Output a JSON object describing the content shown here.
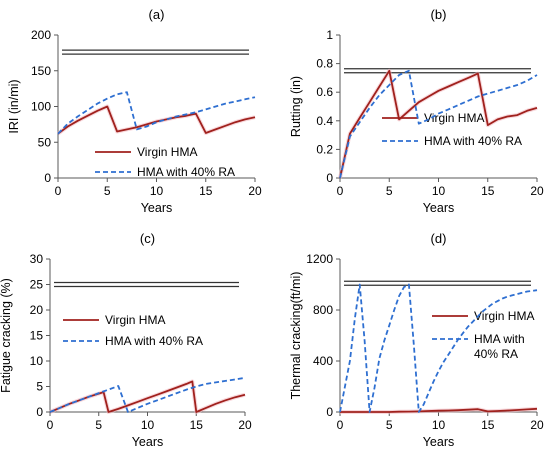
{
  "colors": {
    "virgin": "#a0211d",
    "ra": "#2e6fd1",
    "threshold": "#333333",
    "axis": "#595959",
    "virgin_halo": "#f2b8bf"
  },
  "chart_data": [
    {
      "type": "line",
      "panel_label": "(a)",
      "xlabel": "Years",
      "ylabel": "IRI (in/mi)",
      "xlim": [
        0,
        20
      ],
      "ylim": [
        0,
        200
      ],
      "xticks": [
        0,
        5,
        10,
        15,
        20
      ],
      "yticks": [
        0,
        50,
        100,
        150,
        200
      ],
      "xtick_labels": [
        "0",
        "5",
        "10",
        "15",
        "20"
      ],
      "ytick_labels": [
        "0",
        "50",
        "100",
        "150",
        "200"
      ],
      "threshold": 176,
      "legend": "bottom",
      "series": [
        {
          "name": "Virgin HMA",
          "style": "solid",
          "x": [
            0,
            1,
            2,
            3,
            4,
            5,
            6,
            7,
            8,
            9,
            10,
            11,
            12,
            13,
            14,
            15,
            16,
            17,
            18,
            19,
            20
          ],
          "y": [
            62,
            72,
            80,
            87,
            94,
            100,
            65,
            68,
            71,
            75,
            79,
            82,
            85,
            87,
            90,
            63,
            68,
            73,
            78,
            82,
            85
          ]
        },
        {
          "name": "HMA with 40% RA",
          "style": "dashed",
          "x": [
            0,
            1,
            2,
            3,
            4,
            5,
            6,
            7,
            8,
            9,
            10,
            11,
            12,
            13,
            14,
            15,
            16,
            17,
            18,
            19,
            20
          ],
          "y": [
            62,
            76,
            86,
            95,
            104,
            111,
            117,
            120,
            68,
            72,
            78,
            82,
            86,
            89,
            92,
            96,
            100,
            104,
            107,
            110,
            113
          ]
        }
      ]
    },
    {
      "type": "line",
      "panel_label": "(b)",
      "xlabel": "Years",
      "ylabel": "Rutting (in)",
      "xlim": [
        0,
        20
      ],
      "ylim": [
        0,
        1
      ],
      "xticks": [
        0,
        5,
        10,
        15,
        20
      ],
      "yticks": [
        0,
        0.2,
        0.4,
        0.6,
        0.8,
        1
      ],
      "xtick_labels": [
        "0",
        "5",
        "10",
        "15",
        "20"
      ],
      "ytick_labels": [
        "0",
        "0.2",
        "0.4",
        "0.6",
        "0.8",
        "1"
      ],
      "threshold": 0.75,
      "legend": "bottom-right",
      "series": [
        {
          "name": "Virgin HMA",
          "style": "solid",
          "x": [
            0,
            1,
            2,
            3,
            4,
            5,
            6,
            7,
            8,
            9,
            10,
            11,
            12,
            13,
            14,
            15,
            16,
            17,
            18,
            19,
            20
          ],
          "y": [
            0,
            0.31,
            0.42,
            0.53,
            0.64,
            0.75,
            0.41,
            0.47,
            0.53,
            0.57,
            0.61,
            0.64,
            0.67,
            0.7,
            0.73,
            0.37,
            0.41,
            0.43,
            0.44,
            0.47,
            0.49
          ]
        },
        {
          "name": "HMA with 40% RA",
          "style": "dashed",
          "x": [
            0,
            1,
            2,
            3,
            4,
            5,
            6,
            7,
            8,
            9,
            10,
            11,
            12,
            13,
            14,
            15,
            16,
            17,
            18,
            19,
            20
          ],
          "y": [
            0,
            0.29,
            0.39,
            0.49,
            0.58,
            0.65,
            0.72,
            0.75,
            0.38,
            0.41,
            0.45,
            0.48,
            0.51,
            0.54,
            0.57,
            0.59,
            0.61,
            0.63,
            0.65,
            0.68,
            0.72
          ]
        }
      ]
    },
    {
      "type": "line",
      "panel_label": "(c)",
      "xlabel": "Years",
      "ylabel": "Fatigue cracking (%)",
      "xlim": [
        0,
        20
      ],
      "ylim": [
        0,
        30
      ],
      "xticks": [
        0,
        5,
        10,
        15,
        20
      ],
      "yticks": [
        0,
        5,
        10,
        15,
        20,
        25,
        30
      ],
      "xtick_labels": [
        "0",
        "5",
        "10",
        "15",
        "20"
      ],
      "ytick_labels": [
        "0",
        "5",
        "10",
        "15",
        "20",
        "25",
        "30"
      ],
      "threshold": 25,
      "legend": "center-left",
      "series": [
        {
          "name": "Virgin HMA",
          "style": "solid",
          "x": [
            0,
            1,
            2,
            3,
            4,
            5,
            5.5,
            6,
            7,
            8,
            9,
            10,
            11,
            12,
            13,
            14,
            14.6,
            15,
            16,
            17,
            18,
            19,
            20
          ],
          "y": [
            0,
            0.8,
            1.6,
            2.3,
            3.0,
            3.6,
            3.9,
            0,
            0.6,
            1.3,
            2.0,
            2.7,
            3.4,
            4.1,
            4.8,
            5.5,
            6.0,
            0,
            0.8,
            1.6,
            2.3,
            2.9,
            3.4
          ]
        },
        {
          "name": "HMA with 40% RA",
          "style": "dashed",
          "x": [
            0,
            1,
            2,
            3,
            4,
            5,
            6,
            7,
            8,
            9,
            10,
            11,
            12,
            13,
            14,
            15,
            16,
            17,
            18,
            19,
            20
          ],
          "y": [
            0,
            0.8,
            1.6,
            2.3,
            3.0,
            3.7,
            4.4,
            5.1,
            0,
            0.8,
            1.6,
            2.3,
            3.0,
            3.7,
            4.4,
            5.0,
            5.5,
            5.8,
            6.1,
            6.4,
            6.7
          ]
        }
      ]
    },
    {
      "type": "line",
      "panel_label": "(d)",
      "xlabel": "Years",
      "ylabel": "Thermal cracking(ft/mi)",
      "xlim": [
        0,
        20
      ],
      "ylim": [
        0,
        1200
      ],
      "xticks": [
        0,
        5,
        10,
        15,
        20
      ],
      "yticks": [
        0,
        400,
        800,
        1200
      ],
      "xtick_labels": [
        "0",
        "5",
        "10",
        "15",
        "20"
      ],
      "ytick_labels": [
        "0",
        "400",
        "800",
        "1200"
      ],
      "threshold": 1010,
      "legend": "right",
      "series": [
        {
          "name": "Virgin HMA",
          "style": "solid",
          "x": [
            0,
            1,
            2,
            3,
            4,
            5,
            6,
            7,
            8,
            9,
            10,
            11,
            12,
            13,
            14,
            15,
            16,
            17,
            18,
            19,
            20
          ],
          "y": [
            0,
            0,
            0,
            0,
            0,
            0,
            2,
            3,
            5,
            8,
            10,
            12,
            14,
            18,
            22,
            5,
            8,
            12,
            16,
            20,
            25
          ]
        },
        {
          "name": "HMA with 40% RA",
          "style": "dashed",
          "x": [
            0,
            1,
            1.5,
            2,
            2.5,
            3,
            3.5,
            4,
            4.5,
            5,
            5.5,
            6,
            6.5,
            7,
            7.5,
            8,
            8.5,
            9,
            9.5,
            10,
            10.5,
            11,
            11.5,
            12,
            12.5,
            13,
            13.5,
            14,
            14.5,
            15,
            15.5,
            16,
            16.5,
            17,
            17.5,
            18,
            18.5,
            19,
            19.5,
            20
          ],
          "y": [
            0,
            400,
            730,
            1000,
            560,
            0,
            190,
            420,
            560,
            680,
            800,
            910,
            980,
            1000,
            520,
            0,
            60,
            150,
            240,
            320,
            390,
            450,
            510,
            570,
            620,
            670,
            710,
            750,
            790,
            820,
            850,
            870,
            890,
            905,
            915,
            925,
            935,
            945,
            950,
            955
          ]
        }
      ]
    }
  ]
}
